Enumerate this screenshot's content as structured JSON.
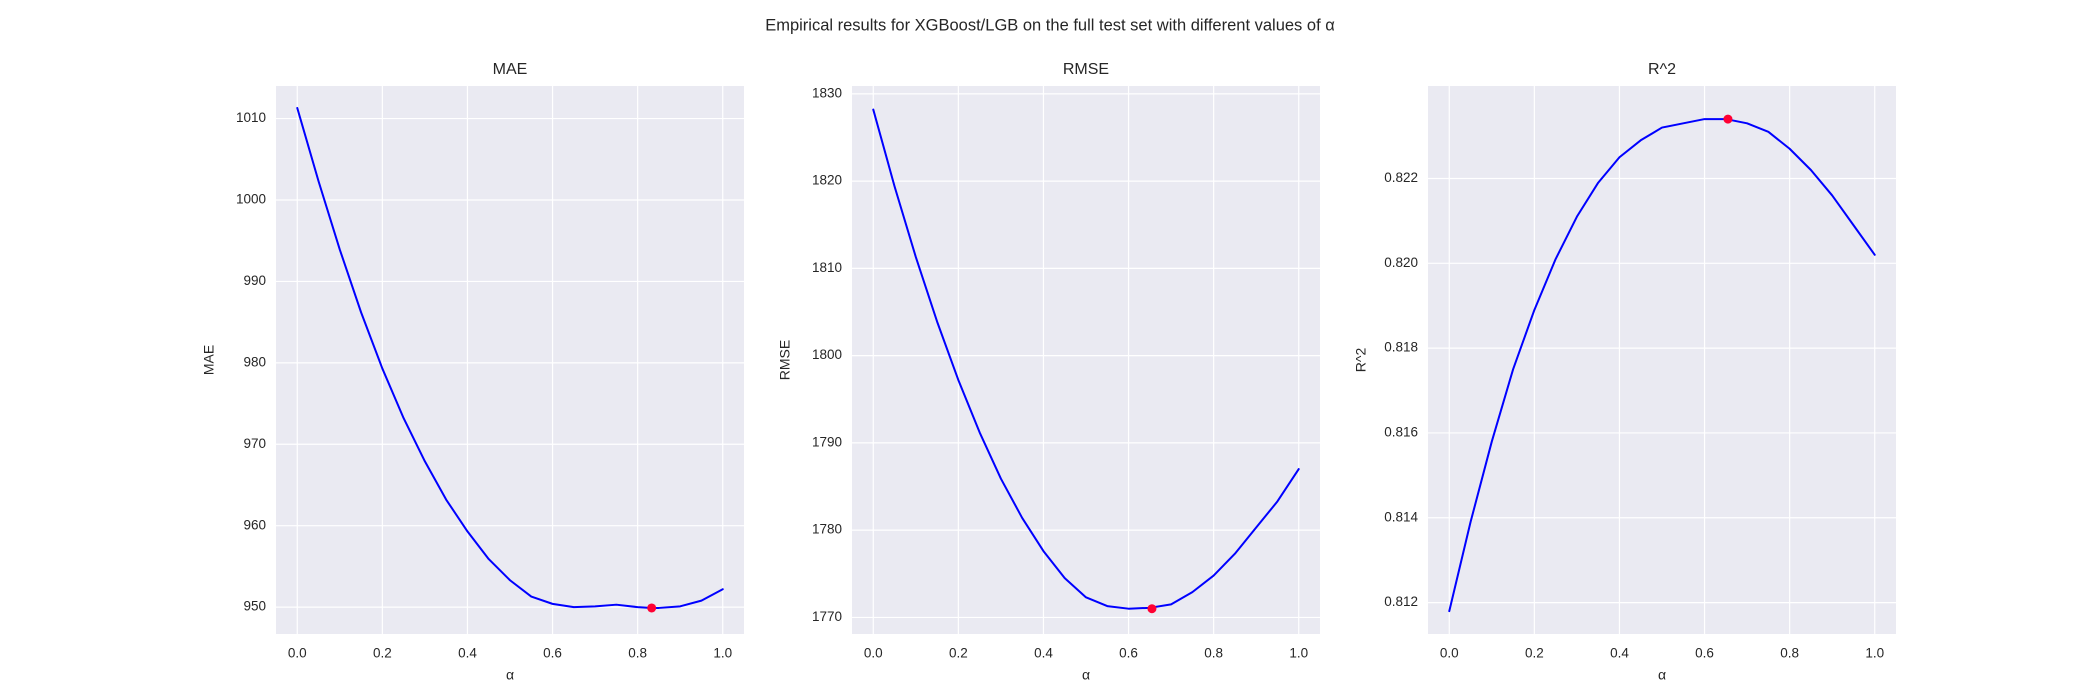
{
  "figure": {
    "suptitle": "Empirical results for XGBoost/LGB on the full test set with different values of α"
  },
  "chart_data": [
    {
      "type": "line",
      "title": "MAE",
      "xlabel": "α",
      "ylabel": "MAE",
      "xlim": [
        -0.05,
        1.05
      ],
      "ylim": [
        946.7,
        1014.0
      ],
      "xticks": [
        0.0,
        0.2,
        0.4,
        0.6,
        0.8,
        1.0
      ],
      "xtick_labels": [
        "0.0",
        "0.2",
        "0.4",
        "0.6",
        "0.8",
        "1.0"
      ],
      "yticks": [
        950,
        960,
        970,
        980,
        990,
        1000,
        1010
      ],
      "ytick_labels": [
        "950",
        "960",
        "970",
        "980",
        "990",
        "1000",
        "1010"
      ],
      "grid": true,
      "series": [
        {
          "x": [
            0.0,
            0.05,
            0.1,
            0.15,
            0.2,
            0.25,
            0.3,
            0.35,
            0.4,
            0.45,
            0.5,
            0.55,
            0.6,
            0.65,
            0.7,
            0.75,
            0.8,
            0.833,
            0.85,
            0.9,
            0.95,
            1.0
          ],
          "values": [
            1011.3,
            1002.3,
            993.9,
            986.2,
            979.3,
            973.2,
            967.9,
            963.2,
            959.3,
            955.9,
            953.3,
            951.3,
            950.4,
            950.0,
            950.1,
            950.3,
            950.0,
            949.9,
            949.9,
            950.1,
            950.8,
            952.2
          ],
          "color": "#0000ff"
        }
      ],
      "highlight": {
        "x": 0.833,
        "y": 949.9,
        "color": "#ff0033"
      }
    },
    {
      "type": "line",
      "title": "RMSE",
      "xlabel": "α",
      "ylabel": "RMSE",
      "xlim": [
        -0.05,
        1.05
      ],
      "ylim": [
        1768.1,
        1830.9
      ],
      "xticks": [
        0.0,
        0.2,
        0.4,
        0.6,
        0.8,
        1.0
      ],
      "xtick_labels": [
        "0.0",
        "0.2",
        "0.4",
        "0.6",
        "0.8",
        "1.0"
      ],
      "yticks": [
        1770,
        1780,
        1790,
        1800,
        1810,
        1820,
        1830
      ],
      "ytick_labels": [
        "1770",
        "1780",
        "1790",
        "1800",
        "1810",
        "1820",
        "1830"
      ],
      "grid": true,
      "series": [
        {
          "x": [
            0.0,
            0.05,
            0.1,
            0.15,
            0.2,
            0.25,
            0.3,
            0.35,
            0.4,
            0.45,
            0.5,
            0.55,
            0.6,
            0.65,
            0.7,
            0.75,
            0.8,
            0.85,
            0.9,
            0.95,
            1.0
          ],
          "values": [
            1828.2,
            1819.4,
            1811.3,
            1803.9,
            1797.2,
            1791.2,
            1785.9,
            1781.4,
            1777.6,
            1774.5,
            1772.3,
            1771.3,
            1771.0,
            1771.1,
            1771.5,
            1772.9,
            1774.8,
            1777.3,
            1780.3,
            1783.3,
            1787.0
          ],
          "color": "#0000ff"
        }
      ],
      "highlight": {
        "x": 0.655,
        "y": 1771.0,
        "color": "#ff0033"
      }
    },
    {
      "type": "line",
      "title": "R^2",
      "xlabel": "α",
      "ylabel": "R^2",
      "xlim": [
        -0.05,
        1.05
      ],
      "ylim": [
        0.81126,
        0.82418
      ],
      "xticks": [
        0.0,
        0.2,
        0.4,
        0.6,
        0.8,
        1.0
      ],
      "xtick_labels": [
        "0.0",
        "0.2",
        "0.4",
        "0.6",
        "0.8",
        "1.0"
      ],
      "yticks": [
        0.812,
        0.814,
        0.816,
        0.818,
        0.82,
        0.822
      ],
      "ytick_labels": [
        "0.812",
        "0.814",
        "0.816",
        "0.818",
        "0.820",
        "0.822"
      ],
      "grid": true,
      "series": [
        {
          "x": [
            0.0,
            0.05,
            0.1,
            0.15,
            0.2,
            0.25,
            0.3,
            0.35,
            0.4,
            0.45,
            0.5,
            0.55,
            0.6,
            0.65,
            0.7,
            0.75,
            0.8,
            0.85,
            0.9,
            0.95,
            1.0
          ],
          "values": [
            0.8118,
            0.8139,
            0.8158,
            0.8175,
            0.8189,
            0.8201,
            0.8211,
            0.8219,
            0.8225,
            0.8229,
            0.8232,
            0.8233,
            0.8234,
            0.8234,
            0.8233,
            0.8231,
            0.8227,
            0.8222,
            0.8216,
            0.8209,
            0.8202
          ],
          "color": "#0000ff"
        }
      ],
      "highlight": {
        "x": 0.655,
        "y": 0.8234,
        "color": "#ff0033"
      }
    }
  ]
}
